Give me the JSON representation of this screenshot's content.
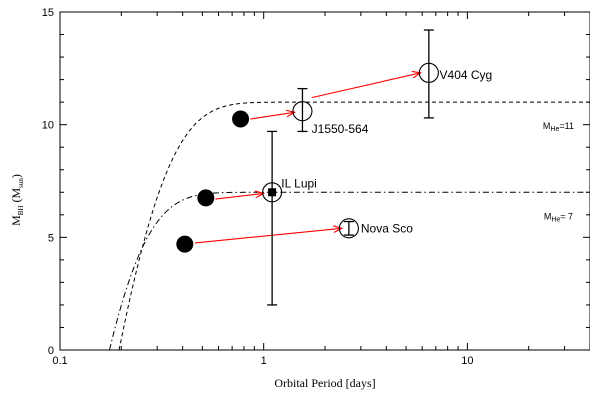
{
  "chart_data": {
    "type": "scatter",
    "title": "",
    "xlabel": "Orbital Period [days]",
    "ylabel": {
      "main": "M",
      "sub1": "BH",
      "mid": " (M",
      "sub2": "sun",
      "end": ")"
    },
    "xscale": "log",
    "xlim": [
      0.1,
      40
    ],
    "ylim": [
      0,
      15
    ],
    "x_ticks": [
      {
        "value": 0.1,
        "label": "0.1"
      },
      {
        "value": 1,
        "label": "1"
      },
      {
        "value": 10,
        "label": "10"
      }
    ],
    "y_ticks": [
      {
        "value": 0,
        "label": "0"
      },
      {
        "value": 5,
        "label": "5"
      },
      {
        "value": 10,
        "label": "10"
      },
      {
        "value": 15,
        "label": "15"
      }
    ],
    "grid": false,
    "curves": [
      {
        "id": "mhe11",
        "style": "dashed",
        "label": {
          "main": "M",
          "sub": "He",
          "end": "=11"
        },
        "mass": 11,
        "x0": 0.195,
        "scale": 0.11,
        "label_at": [
          28,
          9.8
        ]
      },
      {
        "id": "mhe7",
        "style": "dashdot",
        "label": {
          "main": "M",
          "sub": "He",
          "end": "= 7"
        },
        "mass": 7,
        "x0": 0.175,
        "scale": 0.075,
        "label_at": [
          28,
          5.8
        ]
      }
    ],
    "filled_points": [
      {
        "x": 0.77,
        "y": 10.25
      },
      {
        "x": 0.52,
        "y": 6.75
      },
      {
        "x": 0.41,
        "y": 4.7
      }
    ],
    "measured_points": [
      {
        "name": "V404 Cyg",
        "x": 6.47,
        "y": 12.3,
        "ylow": 10.3,
        "yhigh": 14.2,
        "label_at": [
          7.3,
          12.2
        ]
      },
      {
        "name": "J1550-564",
        "x": 1.55,
        "y": 10.6,
        "ylow": 9.7,
        "yhigh": 11.6,
        "label_at": [
          1.72,
          9.8
        ]
      },
      {
        "name": "IL Lupi",
        "x": 1.1,
        "y": 7.0,
        "ylow": 2.0,
        "yhigh": 9.7,
        "label_at": [
          1.22,
          7.4
        ],
        "square_marker": true
      },
      {
        "name": "Nova Sco",
        "x": 2.62,
        "y": 5.4,
        "ylow": 5.1,
        "yhigh": 5.7,
        "label_at": [
          3.0,
          5.4
        ]
      }
    ],
    "arrows": [
      {
        "from": [
          0.86,
          10.25
        ],
        "to": [
          1.42,
          10.55
        ],
        "color": "#ff0000"
      },
      {
        "from": [
          1.72,
          11.2
        ],
        "to": [
          5.9,
          12.3
        ],
        "color": "#ff0000"
      },
      {
        "from": [
          0.58,
          6.7
        ],
        "to": [
          1.0,
          6.95
        ],
        "color": "#ff0000"
      },
      {
        "from": [
          0.46,
          4.75
        ],
        "to": [
          2.42,
          5.4
        ],
        "color": "#ff0000"
      }
    ]
  }
}
